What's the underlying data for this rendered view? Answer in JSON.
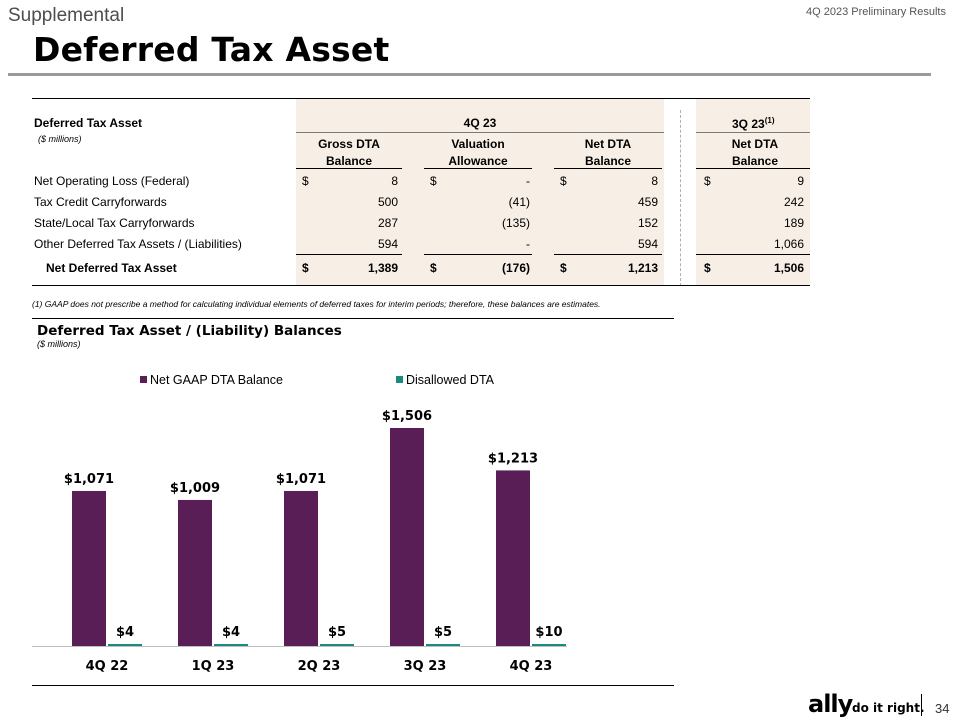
{
  "header": {
    "section": "Supplemental",
    "report": "4Q 2023 Preliminary Results",
    "title": "Deferred Tax Asset"
  },
  "table": {
    "title": "Deferred Tax Asset",
    "units": "($ millions)",
    "group_4q": "4Q 23",
    "group_3q": "3Q 23",
    "group_3q_note": "(1)",
    "col_headers": [
      {
        "line1": "Gross DTA",
        "line2": "Balance"
      },
      {
        "line1": "Valuation",
        "line2": "Allowance"
      },
      {
        "line1": "Net DTA",
        "line2": "Balance"
      },
      {
        "line1": "Net DTA",
        "line2": "Balance"
      }
    ],
    "rows": [
      {
        "label": "Net Operating Loss (Federal)",
        "values": [
          {
            "d": "$",
            "v": "8"
          },
          {
            "d": "$",
            "v": "-"
          },
          {
            "d": "$",
            "v": "8"
          },
          {
            "d": "$",
            "v": "9"
          }
        ]
      },
      {
        "label": "Tax Credit Carryforwards",
        "values": [
          {
            "d": "",
            "v": "500"
          },
          {
            "d": "",
            "v": "(41)"
          },
          {
            "d": "",
            "v": "459"
          },
          {
            "d": "",
            "v": "242"
          }
        ]
      },
      {
        "label": "State/Local Tax Carryforwards",
        "values": [
          {
            "d": "",
            "v": "287"
          },
          {
            "d": "",
            "v": "(135)"
          },
          {
            "d": "",
            "v": "152"
          },
          {
            "d": "",
            "v": "189"
          }
        ]
      },
      {
        "label": "Other Deferred Tax Assets / (Liabilities)",
        "values": [
          {
            "d": "",
            "v": "594"
          },
          {
            "d": "",
            "v": "-"
          },
          {
            "d": "",
            "v": "594"
          },
          {
            "d": "",
            "v": "1,066"
          }
        ]
      }
    ],
    "total": {
      "label": "Net Deferred Tax Asset",
      "values": [
        {
          "d": "$",
          "v": "1,389"
        },
        {
          "d": "$",
          "v": "(176)"
        },
        {
          "d": "$",
          "v": "1,213"
        },
        {
          "d": "$",
          "v": "1,506"
        }
      ]
    }
  },
  "footnote": "(1)   GAAP does not prescribe a method for calculating individual elements of deferred taxes for interim periods; therefore, these balances are estimates.",
  "chart_data": {
    "type": "bar",
    "title": "Deferred Tax Asset / (Liability) Balances",
    "subtitle": "($ millions)",
    "categories": [
      "4Q 22",
      "1Q 23",
      "2Q 23",
      "3Q 23",
      "4Q 23"
    ],
    "series": [
      {
        "name": "Net GAAP DTA Balance",
        "color": "#5a1e57",
        "values": [
          1071,
          1009,
          1071,
          1506,
          1213
        ],
        "labels": [
          "$1,071",
          "$1,009",
          "$1,071",
          "$1,506",
          "$1,213"
        ]
      },
      {
        "name": "Disallowed DTA",
        "color": "#1b8a7e",
        "values": [
          4,
          4,
          5,
          5,
          10
        ],
        "labels": [
          "$4",
          "$4",
          "$5",
          "$5",
          "$10"
        ]
      }
    ],
    "ylim": [
      0,
      1506
    ],
    "legend": "top",
    "grid": false
  },
  "footer": {
    "logo": "ally",
    "tagline": "do it right.",
    "page": "34"
  },
  "colors": {
    "primary": "#5a1e57",
    "secondary": "#1b8a7e",
    "table_shade": "#f7efe6"
  }
}
